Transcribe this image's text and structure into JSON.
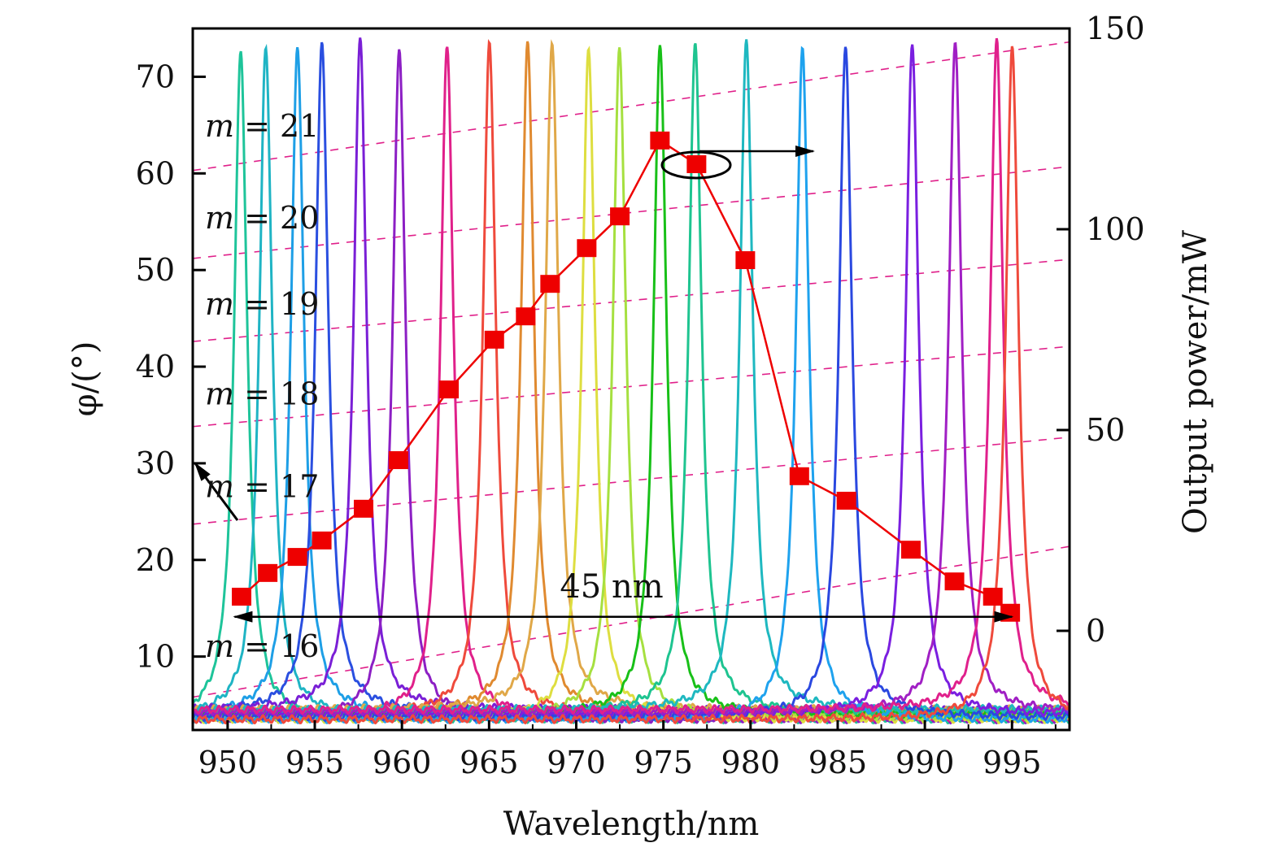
{
  "chart_data": {
    "type": "line",
    "xlabel": "Wavelength/nm",
    "ylabel_left": "φ/(°)",
    "ylabel_right": "Output power/mW",
    "xlim": [
      948,
      998.3
    ],
    "ylim_left": [
      2.4,
      75
    ],
    "ylim_right": [
      -24.7,
      150
    ],
    "x_ticks": [
      950,
      955,
      960,
      965,
      970,
      975,
      980,
      985,
      990,
      995
    ],
    "y_left_ticks": [
      10,
      20,
      30,
      40,
      50,
      60,
      70
    ],
    "y_right_ticks": [
      0,
      50,
      100,
      150
    ],
    "grid": false,
    "spectra": {
      "peak_wavelengths": [
        950.75,
        952.19,
        954.01,
        955.41,
        957.6,
        959.84,
        962.59,
        965.02,
        967.21,
        968.61,
        970.71,
        972.48,
        974.81,
        976.82,
        979.76,
        982.98,
        985.45,
        989.27,
        991.74,
        994.12,
        995.01
      ],
      "peak_value": 72.8,
      "baseline": 3.5,
      "colors": [
        "#1ec49a",
        "#1fb4c4",
        "#1e9fe6",
        "#2a4fe0",
        "#7a1fd6",
        "#8c1fc4",
        "#e0208a",
        "#ef4a3c",
        "#e08a30",
        "#e0a848",
        "#dede40",
        "#a6e040",
        "#18c018",
        "#1ec490",
        "#1eb8c0",
        "#1ea2ee",
        "#2a48e0",
        "#7a1fe0",
        "#a01fc4",
        "#e0208c",
        "#ef4a3c"
      ]
    },
    "phase_lines": {
      "color": "#e0208a",
      "labels": [
        "m = 21",
        "m = 20",
        "m = 19",
        "m = 18",
        "m = 17",
        "m = 16"
      ],
      "label_phi": [
        64.8,
        55.3,
        46.4,
        37.1,
        27.5,
        11.0
      ],
      "phi_at_left": [
        60.3,
        51.2,
        42.6,
        33.8,
        23.7,
        5.8
      ],
      "phi_at_right": [
        73.6,
        60.7,
        51.1,
        42.1,
        32.7,
        21.4
      ]
    },
    "power_series": {
      "name": "Output power",
      "color": "#ee0000",
      "x": [
        950.8,
        952.3,
        954.0,
        955.4,
        957.8,
        959.8,
        962.7,
        965.3,
        967.1,
        968.5,
        970.6,
        972.5,
        974.8,
        976.9,
        979.7,
        982.8,
        985.5,
        989.2,
        991.7,
        993.9,
        994.9
      ],
      "y": [
        8.5,
        14.4,
        18.4,
        22.5,
        30.4,
        42.5,
        60.1,
        72.5,
        78.3,
        86.4,
        95.3,
        103.2,
        122.1,
        116.2,
        92.3,
        38.5,
        32.4,
        20.2,
        12.3,
        8.5,
        4.5
      ]
    },
    "annotations": {
      "span_label": "45 nm",
      "span_from": 950.4,
      "span_to": 995.0,
      "span_power": 3.5
    }
  }
}
